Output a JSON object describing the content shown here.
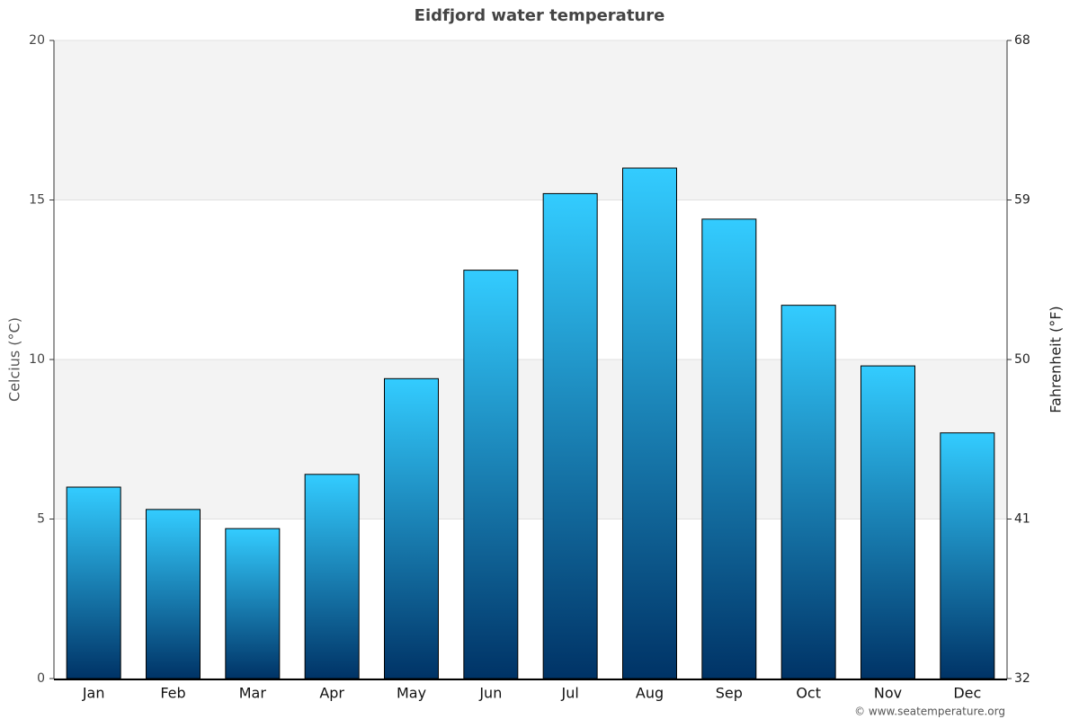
{
  "chart_data": {
    "type": "bar",
    "title": "Eidfjord water temperature",
    "y_label": "Celcius (°C)",
    "y2_label": "Fahrenheit (°F)",
    "categories": [
      "Jan",
      "Feb",
      "Mar",
      "Apr",
      "May",
      "Jun",
      "Jul",
      "Aug",
      "Sep",
      "Oct",
      "Nov",
      "Dec"
    ],
    "values": [
      6.0,
      5.3,
      4.7,
      6.4,
      9.4,
      12.8,
      15.2,
      16.0,
      14.4,
      11.7,
      9.8,
      7.7
    ],
    "color": "#003366",
    "color_top": "#33ccff",
    "ylim": [
      0,
      20
    ],
    "yticks": [
      0,
      5,
      10,
      15,
      20
    ],
    "y2lim": [
      32,
      68
    ],
    "y2ticks": [
      32,
      41,
      50,
      59,
      68
    ],
    "grid": true,
    "credit": "© www.seatemperature.org"
  }
}
